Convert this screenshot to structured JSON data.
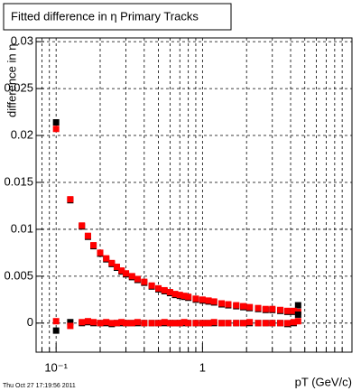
{
  "chart_data": {
    "type": "scatter",
    "title": "Fitted difference in  η  Primary Tracks",
    "y_label": "difference in η",
    "x_label": "pT (GeV/c)",
    "timestamp": "Thu Oct 27 17:19:56 2011",
    "log_x": true,
    "grid": true,
    "marker": "square",
    "x": [
      0.1,
      0.125,
      0.15,
      0.165,
      0.18,
      0.2,
      0.22,
      0.24,
      0.26,
      0.28,
      0.3,
      0.33,
      0.36,
      0.4,
      0.45,
      0.5,
      0.55,
      0.6,
      0.65,
      0.7,
      0.75,
      0.8,
      0.9,
      1.0,
      1.1,
      1.2,
      1.35,
      1.5,
      1.7,
      1.9,
      2.1,
      2.4,
      2.7,
      3.0,
      3.4,
      3.8,
      4.2,
      4.5
    ],
    "series": [
      {
        "color": "#000000",
        "values": [
          0.0214,
          0.0131,
          0.0103,
          0.0092,
          0.0082,
          0.0074,
          0.0068,
          0.0063,
          0.0059,
          0.0055,
          0.0052,
          0.0049,
          0.0046,
          0.0043,
          0.0039,
          0.0036,
          0.0034,
          0.0032,
          0.003,
          0.0029,
          0.0028,
          0.0027,
          0.0025,
          0.0024,
          0.0023,
          0.0022,
          0.002,
          0.0019,
          0.0018,
          0.0017,
          0.0016,
          0.0015,
          0.0014,
          0.0014,
          0.0013,
          0.0012,
          0.0012,
          0.0019
        ]
      },
      {
        "color": "#ff0000",
        "values": [
          0.0207,
          0.0132,
          0.0104,
          0.0093,
          0.0083,
          0.0075,
          0.0069,
          0.0064,
          0.006,
          0.0056,
          0.0053,
          0.005,
          0.0047,
          0.0044,
          0.004,
          0.0037,
          0.0035,
          0.0033,
          0.0031,
          0.003,
          0.0029,
          0.0028,
          0.0026,
          0.0025,
          0.0024,
          0.0023,
          0.0021,
          0.002,
          0.0019,
          0.0018,
          0.0017,
          0.0016,
          0.0015,
          0.0015,
          0.0014,
          0.0013,
          0.0013,
          0.0012
        ]
      },
      {
        "color": "#000000",
        "values": [
          -0.0008,
          0.0001,
          0.0,
          0.0001,
          0.0,
          0.0,
          0.0,
          -0.0001,
          0.0,
          0.0,
          0.0,
          0.0,
          0.0,
          0.0,
          0.0,
          0.0,
          0.0,
          0.0,
          0.0,
          0.0,
          0.0,
          0.0,
          0.0,
          0.0,
          0.0,
          0.0,
          0.0,
          0.0,
          0.0,
          0.0,
          0.0,
          0.0,
          0.0,
          0.0,
          0.0,
          -0.0001,
          0.0,
          0.0009
        ]
      },
      {
        "color": "#ff0000",
        "values": [
          0.0002,
          -0.0003,
          0.0001,
          0.0002,
          0.0001,
          0.0,
          0.0001,
          0.0,
          0.0,
          0.0001,
          0.0,
          0.0,
          0.0001,
          0.0,
          0.0,
          0.0,
          0.0001,
          0.0,
          0.0,
          0.0,
          0.0001,
          0.0,
          0.0,
          0.0,
          0.0,
          0.0001,
          0.0,
          0.0,
          0.0,
          0.0,
          0.0001,
          0.0,
          0.0,
          0.0,
          0.0,
          0.0,
          0.0001,
          0.0002
        ]
      }
    ],
    "xlim": [
      0.073,
      10.5
    ],
    "ylim": [
      -0.0031,
      0.0304
    ],
    "xticks": [
      {
        "value": 0.1,
        "label": "10⁻¹"
      },
      1
    ],
    "xminor": [
      0.08,
      0.09,
      0.2,
      0.3,
      0.4,
      0.5,
      0.6,
      0.7,
      0.8,
      0.9,
      2,
      3,
      4,
      5,
      6,
      7,
      8,
      9
    ],
    "yticks": [
      0,
      0.005,
      0.01,
      0.015,
      0.02,
      0.025,
      0.03
    ]
  }
}
